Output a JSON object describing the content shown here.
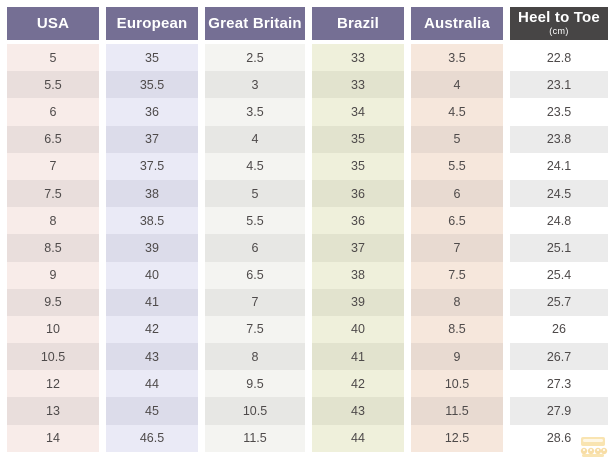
{
  "theme": {
    "header_bg": "#756f94",
    "header_dark_bg": "#474545",
    "header_text": "#ffffff",
    "body_text": "#4e4a4a",
    "usa": "#f8ece9",
    "usa_alt": "#e9dedc",
    "european": "#eaeaf6",
    "european_alt": "#dcdcea",
    "great_britain": "#f4f4f1",
    "great_britain_alt": "#e7e7e4",
    "brazil": "#eff0db",
    "brazil_alt": "#e2e3ce",
    "australia": "#f6e7dc",
    "australia_alt": "#e8dad1",
    "heel_to_toe": "#ffffff",
    "heel_to_toe_alt": "#ebebeb"
  },
  "chart_data": {
    "type": "table",
    "columns": [
      {
        "key": "usa",
        "label": "USA"
      },
      {
        "key": "european",
        "label": "European"
      },
      {
        "key": "great_britain",
        "label": "Great Britain"
      },
      {
        "key": "brazil",
        "label": "Brazil"
      },
      {
        "key": "australia",
        "label": "Australia"
      },
      {
        "key": "heel_to_toe",
        "label": "Heel to Toe",
        "sublabel": "(cm)"
      }
    ],
    "rows": [
      [
        "5",
        "35",
        "2.5",
        "33",
        "3.5",
        "22.8"
      ],
      [
        "5.5",
        "35.5",
        "3",
        "33",
        "4",
        "23.1"
      ],
      [
        "6",
        "36",
        "3.5",
        "34",
        "4.5",
        "23.5"
      ],
      [
        "6.5",
        "37",
        "4",
        "35",
        "5",
        "23.8"
      ],
      [
        "7",
        "37.5",
        "4.5",
        "35",
        "5.5",
        "24.1"
      ],
      [
        "7.5",
        "38",
        "5",
        "36",
        "6",
        "24.5"
      ],
      [
        "8",
        "38.5",
        "5.5",
        "36",
        "6.5",
        "24.8"
      ],
      [
        "8.5",
        "39",
        "6",
        "37",
        "7",
        "25.1"
      ],
      [
        "9",
        "40",
        "6.5",
        "38",
        "7.5",
        "25.4"
      ],
      [
        "9.5",
        "41",
        "7",
        "39",
        "8",
        "25.7"
      ],
      [
        "10",
        "42",
        "7.5",
        "40",
        "8.5",
        "26"
      ],
      [
        "10.5",
        "43",
        "8",
        "41",
        "9",
        "26.7"
      ],
      [
        "12",
        "44",
        "9.5",
        "42",
        "10.5",
        "27.3"
      ],
      [
        "13",
        "45",
        "10.5",
        "43",
        "11.5",
        "27.9"
      ],
      [
        "14",
        "46.5",
        "11.5",
        "44",
        "12.5",
        "28.6"
      ]
    ]
  }
}
